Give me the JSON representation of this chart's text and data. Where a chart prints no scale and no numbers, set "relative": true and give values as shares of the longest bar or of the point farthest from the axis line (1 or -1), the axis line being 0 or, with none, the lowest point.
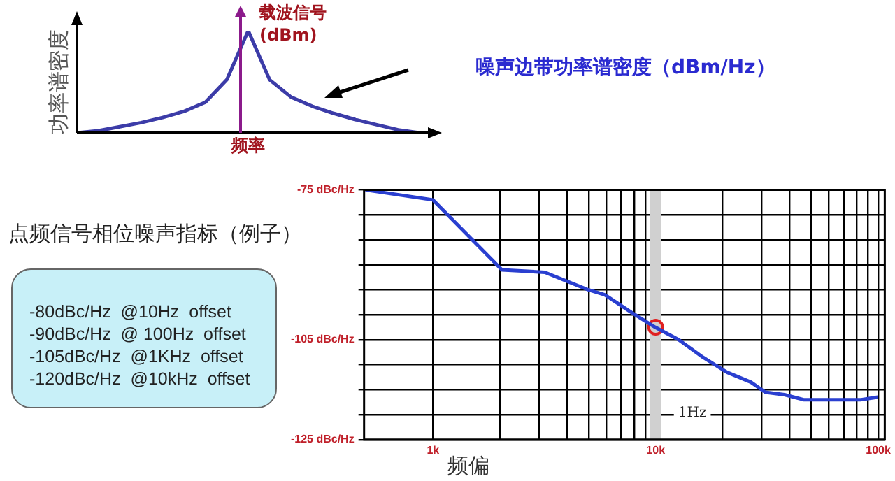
{
  "chart_data": [
    {
      "type": "line",
      "relative": true,
      "legend": false,
      "ylabel": "功率谱密度",
      "xlabel": "频率",
      "annotations": [
        "载波信号",
        "(dBm)",
        "噪声边带功率谱密度（dBm/Hz）"
      ],
      "categories": [
        null,
        null,
        null,
        null,
        null,
        null,
        null,
        null,
        null,
        null,
        null,
        null,
        null,
        null,
        null,
        null,
        null
      ],
      "marker": "none",
      "series": [
        {
          "type": "line",
          "color": "#3c3ca8",
          "values": [
            0,
            0.02,
            0.06,
            0.1,
            0.15,
            0.21,
            0.3,
            0.52,
            1,
            0.52,
            0.35,
            0.26,
            0.19,
            0.13,
            0.08,
            0.03,
            0
          ]
        }
      ]
    },
    {
      "type": "other",
      "title": "点频信号相位噪声指标（例子）",
      "annotations": [
        "-80dBc/Hz  @10Hz  offset",
        "-90dBc/Hz  @ 100Hz  offset",
        "-105dBc/Hz  @1KHz  offset",
        "-120dBc/Hz  @10kHz  offset"
      ]
    },
    {
      "type": "line",
      "xlabel": "频偏",
      "log": "x",
      "grid": true,
      "legend": false,
      "xlim": [
        490,
        107000
      ],
      "ylim": [
        -125,
        -75
      ],
      "xticks": [
        {
          "value": 1000,
          "label": "1k"
        },
        {
          "value": 2000,
          "label": null
        },
        {
          "value": 3000,
          "label": null
        },
        {
          "value": 4000,
          "label": null
        },
        {
          "value": 5000,
          "label": null
        },
        {
          "value": 6000,
          "label": null
        },
        {
          "value": 7000,
          "label": null
        },
        {
          "value": 8000,
          "label": null
        },
        {
          "value": 9000,
          "label": null
        },
        {
          "value": 10000,
          "label": "10k"
        },
        {
          "value": 20000,
          "label": null
        },
        {
          "value": 30000,
          "label": null
        },
        {
          "value": 40000,
          "label": null
        },
        {
          "value": 50000,
          "label": null
        },
        {
          "value": 60000,
          "label": null
        },
        {
          "value": 70000,
          "label": null
        },
        {
          "value": 80000,
          "label": null
        },
        {
          "value": 90000,
          "label": null
        },
        {
          "value": 100000,
          "label": "100k"
        }
      ],
      "yticks": [
        {
          "value": -75,
          "label": "-75 dBc/Hz"
        },
        {
          "value": -80,
          "label": null
        },
        {
          "value": -85,
          "label": null
        },
        {
          "value": -90,
          "label": null
        },
        {
          "value": -95,
          "label": null
        },
        {
          "value": -100,
          "label": null
        },
        {
          "value": -105,
          "label": "-105 dBc/Hz"
        },
        {
          "value": -110,
          "label": null
        },
        {
          "value": -115,
          "label": null
        },
        {
          "value": -120,
          "label": null
        },
        {
          "value": -125,
          "label": "-125 dBc/Hz"
        }
      ],
      "bands": [
        {
          "axis": "x",
          "from": 9400,
          "to": 10600,
          "label": "1Hz",
          "color": "#d0d0d0"
        }
      ],
      "series": [
        {
          "type": "line",
          "color": "#2a3fd0",
          "marker": "none",
          "x": [
            497,
            1000,
            2040,
            3180,
            4980,
            5910,
            7770,
            9950,
            12700,
            16300,
            20900,
            26800,
            31100,
            37900,
            46200,
            56200,
            68700,
            83800,
            99600
          ],
          "values": [
            -75,
            -77,
            -91,
            -91.5,
            -95,
            -96,
            -99.5,
            -102.5,
            -105,
            -108.5,
            -111.5,
            -113.5,
            -115.5,
            -116,
            -117,
            -117,
            -117,
            -117,
            -116.5
          ]
        },
        {
          "type": "scatter",
          "color": "#e02020",
          "marker": "circle",
          "x": [
            10000
          ],
          "values": [
            -102.5
          ]
        }
      ]
    }
  ]
}
